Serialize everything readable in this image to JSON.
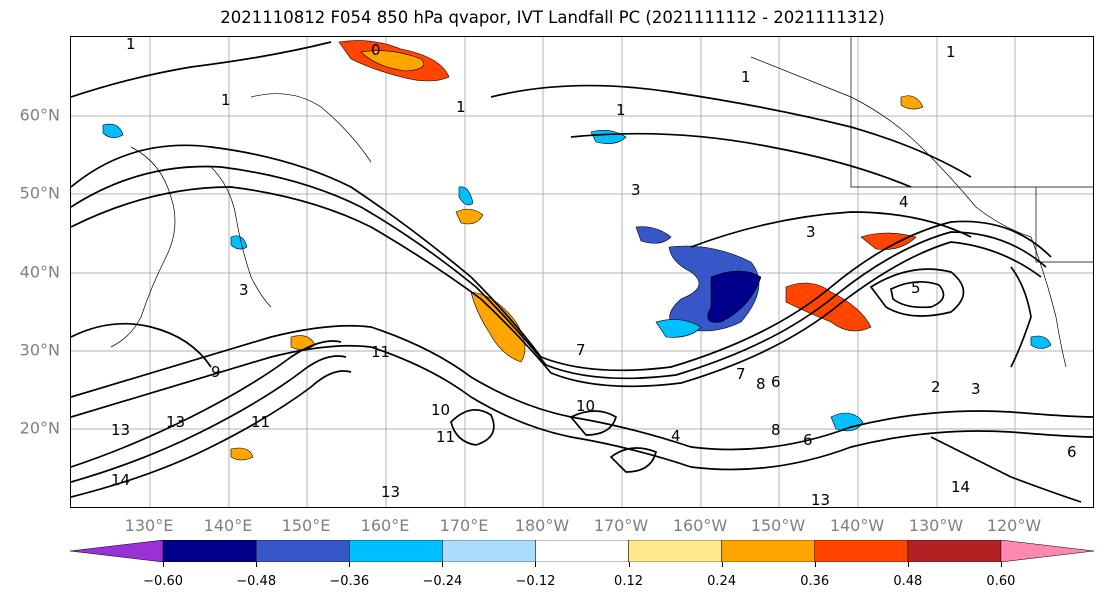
{
  "title": "2021110812 F054 850 hPa qvapor, IVT Landfall PC (2021111112 - 2021111312)",
  "lat_labels": [
    "60°N",
    "50°N",
    "40°N",
    "30°N",
    "20°N"
  ],
  "lon_labels": [
    "130°E",
    "140°E",
    "150°E",
    "160°E",
    "170°E",
    "180°W",
    "170°W",
    "160°W",
    "150°W",
    "140°W",
    "130°W",
    "120°W"
  ],
  "contour_labels": [
    "1",
    "0",
    "1",
    "1",
    "1",
    "1",
    "1",
    "3",
    "4",
    "3",
    "5",
    "3",
    "7",
    "13",
    "11",
    "11",
    "9",
    "7",
    "8",
    "10",
    "11",
    "13",
    "14",
    "2",
    "3",
    "6",
    "13",
    "14",
    "13",
    "10",
    "4",
    "8",
    "6",
    "6"
  ],
  "colorbar": {
    "colors": [
      "#9b30d6",
      "#00008b",
      "#3757c9",
      "#00bfff",
      "#aadcff",
      "#ffffff",
      "#ffe98a",
      "#ffa500",
      "#ff4500",
      "#b22222",
      "#ff88b0"
    ],
    "ticks": [
      "−0.60",
      "−0.48",
      "−0.36",
      "−0.24",
      "−0.12",
      "0.12",
      "0.24",
      "0.36",
      "0.48",
      "0.60"
    ]
  },
  "colors": {
    "frame": "#000000",
    "grid": "#b3b3b3",
    "axis_label": "#808080"
  }
}
